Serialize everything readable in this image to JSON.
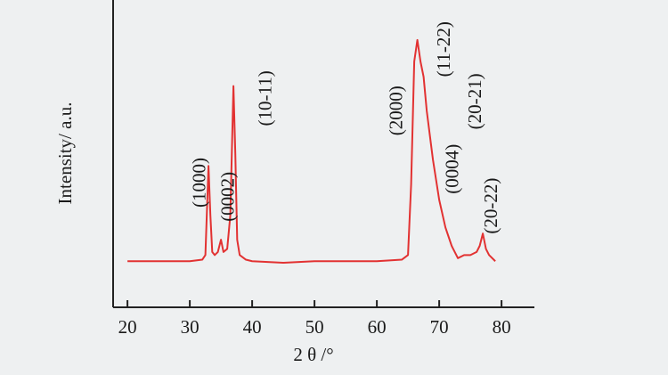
{
  "chart_data": {
    "type": "line",
    "xlabel": "2 θ /°",
    "ylabel": "Intensity/ a.u.",
    "x": [
      20,
      25,
      30,
      32,
      32.5,
      33,
      33.3,
      33.6,
      34,
      34.5,
      35,
      35.4,
      36,
      36.5,
      37,
      37.3,
      37.6,
      38,
      39,
      40,
      45,
      50,
      55,
      60,
      64,
      65,
      65.5,
      66,
      66.5,
      67,
      67.5,
      68,
      69,
      70,
      71,
      72,
      73,
      74,
      75,
      76,
      76.5,
      77,
      77.5,
      78,
      79
    ],
    "series": [
      {
        "color": "#e23232",
        "values": [
          15,
          15,
          15,
          15.5,
          17,
          46,
          30,
          18,
          17,
          18,
          22,
          18,
          19,
          30,
          72,
          50,
          22,
          17,
          15.5,
          15,
          14.5,
          15,
          15,
          15,
          15.5,
          17,
          40,
          80,
          87,
          80,
          75,
          64,
          48,
          35,
          26,
          20,
          16,
          17,
          17,
          18,
          20,
          24,
          19,
          17,
          15
        ]
      }
    ],
    "xlim": [
      17.7,
      82
    ],
    "xticks": [
      20,
      30,
      40,
      50,
      60,
      70,
      80
    ],
    "ylim": [
      0,
      100
    ],
    "annotations": [
      {
        "text": "(1000)",
        "x": 31.8,
        "y": 40.6
      },
      {
        "text": "(0002)",
        "x": 36.4,
        "y": 36
      },
      {
        "text": "(10-11)",
        "x": 42.4,
        "y": 68
      },
      {
        "text": "(2000)",
        "x": 63.4,
        "y": 64
      },
      {
        "text": "(11-22)",
        "x": 71,
        "y": 84
      },
      {
        "text": "(20-21)",
        "x": 76,
        "y": 67
      },
      {
        "text": "(0004)",
        "x": 72.4,
        "y": 45
      },
      {
        "text": "(20-22)",
        "x": 78.6,
        "y": 33
      }
    ]
  }
}
